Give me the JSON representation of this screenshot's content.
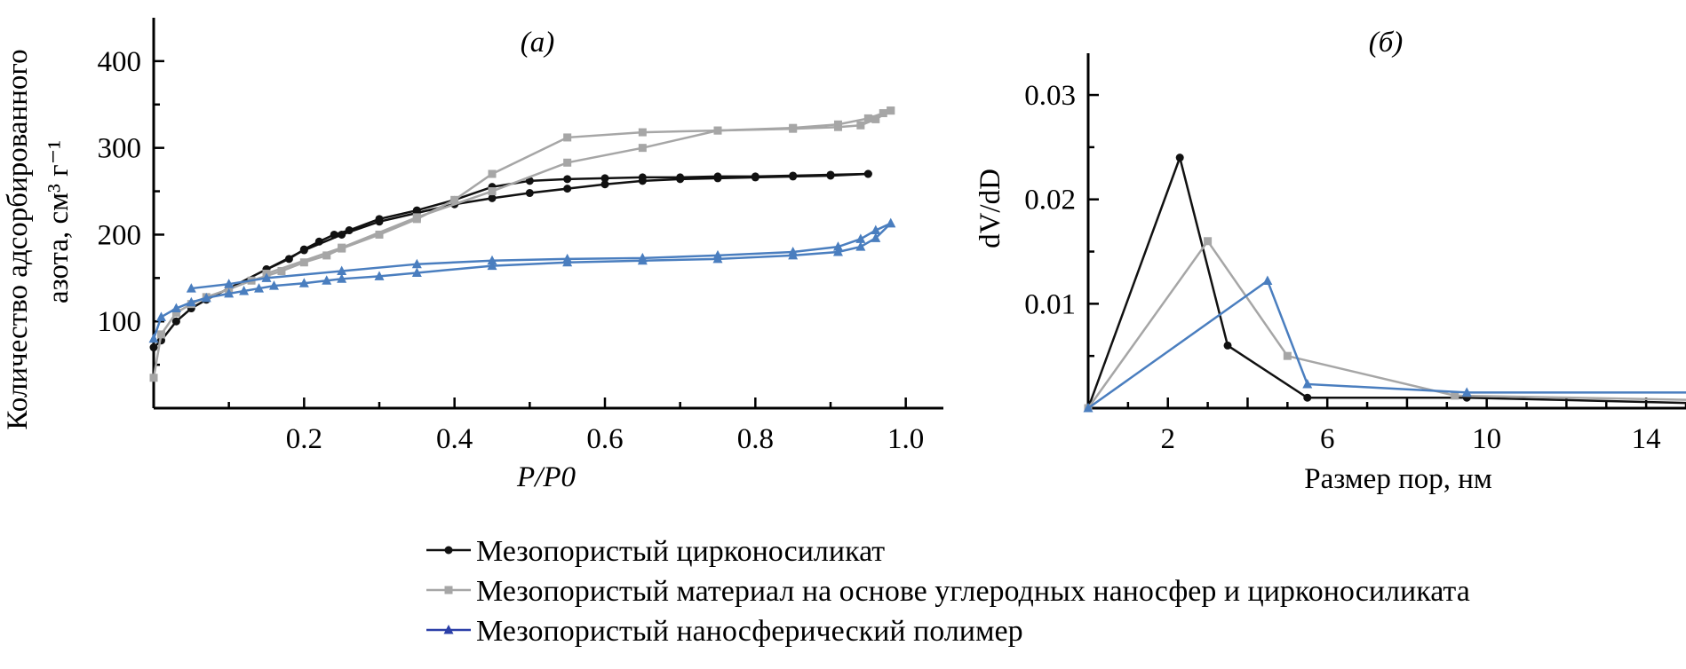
{
  "colors": {
    "black_series": "#111111",
    "gray_series": "#a6a6a6",
    "blue_series": "#4a7ebf"
  },
  "legend": {
    "items": [
      {
        "label": "Мезопористый цирконосиликат",
        "color": "#111111",
        "marker": "circle"
      },
      {
        "label": "Мезопористый материал на основе углеродных наносфер и цирконосиликата",
        "color": "#a6a6a6",
        "marker": "square"
      },
      {
        "label": "Мезопористый наносферический полимер",
        "color": "#2b3fa8",
        "marker": "triangle"
      }
    ]
  },
  "chart_data": [
    {
      "type": "line",
      "panel_label": "(а)",
      "xlabel": "P/P0",
      "ylabel_line1": "Количество адсорбированного",
      "ylabel_line2": "азота, см³ г⁻¹",
      "xlim": [
        0.0,
        1.05
      ],
      "ylim": [
        0,
        450
      ],
      "xticks": [
        0.2,
        0.4,
        0.6,
        0.8,
        1.0
      ],
      "xtick_labels": [
        "0.2",
        "0.4",
        "0.6",
        "0.8",
        "1.0"
      ],
      "yticks": [
        100,
        200,
        300,
        400
      ],
      "ytick_labels": [
        "100",
        "200",
        "300",
        "400"
      ],
      "series": [
        {
          "name": "Мезопористый цирконосиликат",
          "color": "#111111",
          "marker": "circle",
          "branches": [
            {
              "x": [
                0.0,
                0.01,
                0.03,
                0.05,
                0.07,
                0.1,
                0.15,
                0.18,
                0.2,
                0.22,
                0.24,
                0.26,
                0.3,
                0.35,
                0.4,
                0.45,
                0.5,
                0.55,
                0.6,
                0.65,
                0.7,
                0.75,
                0.8,
                0.85,
                0.9,
                0.95
              ],
              "y": [
                70,
                78,
                100,
                115,
                125,
                138,
                160,
                172,
                183,
                192,
                200,
                205,
                218,
                228,
                240,
                255,
                262,
                264,
                265,
                266,
                266,
                267,
                267,
                268,
                269,
                270
              ]
            },
            {
              "x": [
                0.95,
                0.9,
                0.85,
                0.8,
                0.75,
                0.7,
                0.65,
                0.6,
                0.55,
                0.5,
                0.45,
                0.4,
                0.35,
                0.3,
                0.25,
                0.2,
                0.15
              ],
              "y": [
                270,
                268,
                267,
                266,
                265,
                264,
                262,
                258,
                253,
                248,
                242,
                235,
                225,
                215,
                200,
                182,
                160
              ]
            }
          ]
        },
        {
          "name": "Мезопористый материал на основе углеродных наносфер и цирконосиликата",
          "color": "#a6a6a6",
          "marker": "square",
          "branches": [
            {
              "x": [
                0.0,
                0.01,
                0.03,
                0.05,
                0.07,
                0.1,
                0.13,
                0.17,
                0.2,
                0.23,
                0.25,
                0.3,
                0.35,
                0.4,
                0.45,
                0.55,
                0.65,
                0.75,
                0.85,
                0.91,
                0.95,
                0.97,
                0.98
              ],
              "y": [
                35,
                85,
                110,
                120,
                128,
                137,
                147,
                158,
                168,
                176,
                184,
                200,
                218,
                240,
                270,
                312,
                318,
                320,
                323,
                327,
                334,
                340,
                343
              ]
            },
            {
              "x": [
                0.98,
                0.96,
                0.94,
                0.91,
                0.85,
                0.75,
                0.65,
                0.55,
                0.45,
                0.35,
                0.25,
                0.15
              ],
              "y": [
                343,
                333,
                326,
                324,
                322,
                320,
                300,
                283,
                250,
                220,
                185,
                155
              ]
            }
          ]
        },
        {
          "name": "Мезопористый наносферический полимер",
          "color": "#4a7ebf",
          "marker": "triangle",
          "branches": [
            {
              "x": [
                0.0,
                0.01,
                0.03,
                0.05,
                0.07,
                0.1,
                0.12,
                0.14,
                0.16,
                0.2,
                0.23,
                0.25,
                0.3,
                0.35,
                0.45,
                0.55,
                0.65,
                0.75,
                0.85,
                0.91,
                0.94,
                0.96,
                0.98
              ],
              "y": [
                80,
                105,
                115,
                122,
                127,
                132,
                135,
                138,
                141,
                144,
                147,
                149,
                152,
                156,
                164,
                168,
                170,
                172,
                176,
                180,
                186,
                196,
                213
              ]
            },
            {
              "x": [
                0.98,
                0.96,
                0.94,
                0.91,
                0.85,
                0.75,
                0.65,
                0.55,
                0.45,
                0.35,
                0.25,
                0.15,
                0.1,
                0.05
              ],
              "y": [
                213,
                205,
                195,
                186,
                180,
                176,
                173,
                172,
                170,
                166,
                158,
                150,
                143,
                138
              ]
            }
          ]
        }
      ]
    },
    {
      "type": "line",
      "panel_label": "(б)",
      "xlabel": "Размер пор, нм",
      "ylabel": "dV/dD",
      "xlim": [
        0,
        15.0
      ],
      "ylim": [
        0,
        0.034
      ],
      "xticks": [
        2,
        6,
        10,
        14
      ],
      "xtick_labels": [
        "2",
        "6",
        "10",
        "14"
      ],
      "yticks": [
        0.01,
        0.02,
        0.03
      ],
      "ytick_labels": [
        "0.01",
        "0.02",
        "0.03"
      ],
      "series": [
        {
          "name": "Мезопористый цирконосиликат",
          "color": "#111111",
          "marker": "circle",
          "x": [
            0.0,
            2.3,
            3.5,
            5.5,
            9.5,
            15.0
          ],
          "y": [
            0.0,
            0.024,
            0.006,
            0.001,
            0.001,
            0.0005
          ]
        },
        {
          "name": "Мезопористый материал на основе углеродных наносфер и цирконосиликата",
          "color": "#a6a6a6",
          "marker": "square",
          "x": [
            0.0,
            3.0,
            5.0,
            9.2,
            15.0
          ],
          "y": [
            0.0,
            0.016,
            0.005,
            0.0012,
            0.0008
          ]
        },
        {
          "name": "Мезопористый наносферический полимер",
          "color": "#4a7ebf",
          "marker": "triangle",
          "x": [
            0.0,
            4.5,
            5.5,
            9.5,
            15.0
          ],
          "y": [
            0.0,
            0.0122,
            0.0023,
            0.0015,
            0.0015
          ]
        }
      ]
    }
  ]
}
